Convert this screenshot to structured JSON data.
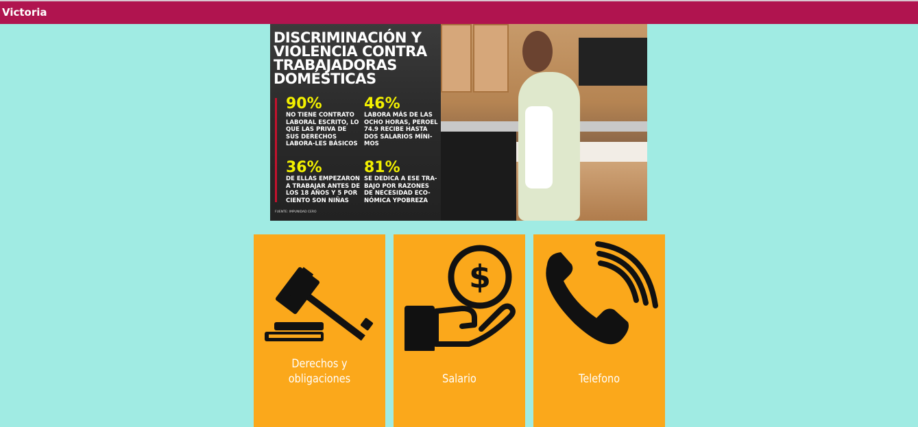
{
  "appbar": {
    "title": "Victoria"
  },
  "hero": {
    "title": "DISCRIMINACIÓN Y VIOLENCIA CONTRA TRABAJADORAS DOMÉSTICAS",
    "stats": [
      {
        "pct": "90%",
        "text": "NO TIENE CONTRATO LABORAL ESCRITO, LO QUE LAS PRIVA DE SUS DERECHOS LABORA-LES BÁSICOS"
      },
      {
        "pct": "46%",
        "text": "LABORA MÁS DE LAS OCHO HORAS, PEROEL 74.9 RECIBE HASTA DOS SALARIOS MÍNI-MOS"
      },
      {
        "pct": "36%",
        "text": "DE ELLAS EMPEZARON A TRABAJAR ANTES DE LOS 18 AÑOS Y 5 POR CIENTO SON NIÑAS"
      },
      {
        "pct": "81%",
        "text": "SE DEDICA A ESE TRA-BAJO POR RAZONES DE NECESIDAD ECO-NÓMICA YPOBREZA"
      }
    ],
    "source": "FUENTE: IMPUNIDAD CERO"
  },
  "tiles": [
    {
      "label_line1": "Derechos y",
      "label_line2": "obligaciones",
      "icon": "gavel-icon"
    },
    {
      "label": "Salario",
      "icon": "money-hand-icon"
    },
    {
      "label": "Telefono",
      "icon": "phone-icon"
    }
  ],
  "colors": {
    "appbar": "#b0144f",
    "background": "#a0ebe3",
    "tile": "#fba81b",
    "stat": "#f2f000"
  }
}
